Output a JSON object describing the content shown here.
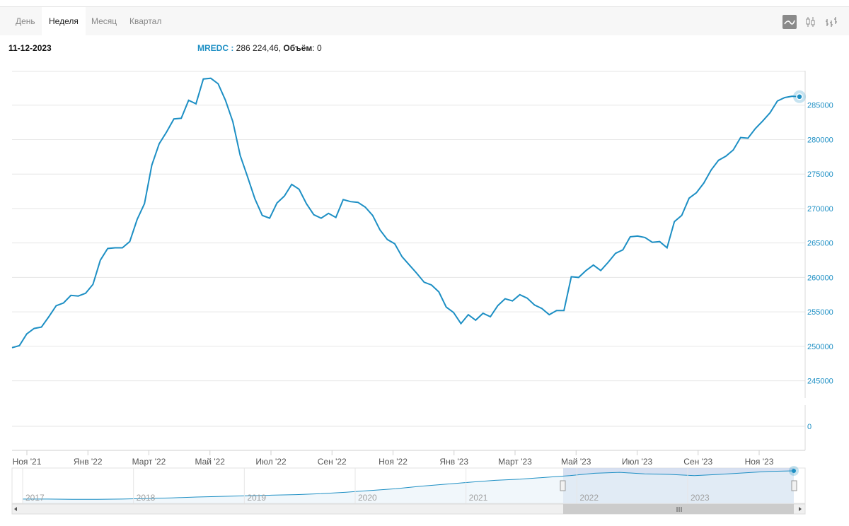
{
  "tabs": [
    {
      "label": "День",
      "active": false
    },
    {
      "label": "Неделя",
      "active": true
    },
    {
      "label": "Месяц",
      "active": false
    },
    {
      "label": "Квартал",
      "active": false
    }
  ],
  "view_buttons": [
    {
      "icon": "line-chart-icon",
      "active": true
    },
    {
      "icon": "candlestick-icon",
      "active": false
    },
    {
      "icon": "ohlc-bars-icon",
      "active": false
    }
  ],
  "header": {
    "date": "11-12-2023",
    "ticker": "MREDC :",
    "value": " 286 224,46, ",
    "volume_label": "Объём",
    "volume_value": ": 0"
  },
  "colors": {
    "line": "#1d8fc4",
    "grid": "#e6e6e6",
    "navigator_fill": "#c9d5ec"
  },
  "chart_data": {
    "type": "line",
    "title": "",
    "series": [
      {
        "name": "MREDC",
        "values": [
          249800,
          250100,
          251800,
          252600,
          252800,
          254300,
          255900,
          256300,
          257400,
          257300,
          257700,
          259000,
          262500,
          264200,
          264300,
          264300,
          265200,
          268400,
          270700,
          276300,
          279400,
          281100,
          283000,
          283100,
          285700,
          285200,
          288800,
          288900,
          288100,
          285700,
          282600,
          277700,
          274600,
          271400,
          269000,
          268600,
          270800,
          271800,
          273500,
          272800,
          270700,
          269100,
          268600,
          269300,
          268700,
          271300,
          271000,
          270900,
          270200,
          269000,
          266900,
          265500,
          264900,
          263000,
          261800,
          260600,
          259300,
          258900,
          257900,
          255700,
          254900,
          253300,
          254600,
          253800,
          254800,
          254300,
          255900,
          256900,
          256600,
          257500,
          257000,
          256000,
          255500,
          254600,
          255200,
          255200,
          260100,
          260000,
          261000,
          261800,
          261000,
          262200,
          263500,
          264000,
          265900,
          266000,
          265800,
          265100,
          265200,
          264300,
          268100,
          269000,
          271500,
          272300,
          273700,
          275600,
          277000,
          277600,
          278500,
          280300,
          280200,
          281600,
          282700,
          283900,
          285600,
          286100,
          286300,
          286224
        ]
      }
    ],
    "x_tick_labels": [
      "Ноя '21",
      "Янв '22",
      "Март '22",
      "Май '22",
      "Июл '22",
      "Сен '22",
      "Ноя '22",
      "Янв '23",
      "Март '23",
      "Май '23",
      "Июл '23",
      "Сен '23",
      "Ноя '23"
    ],
    "y_ticks": [
      245000,
      250000,
      255000,
      260000,
      265000,
      270000,
      275000,
      280000,
      285000
    ],
    "ylim": [
      242500,
      290000
    ],
    "volume_axis_ticks": [
      0
    ],
    "grid": true,
    "navigator": {
      "year_labels": [
        "2017",
        "2018",
        "2019",
        "2020",
        "2021",
        "2022",
        "2023"
      ],
      "values": [
        0.05,
        0.05,
        0.04,
        0.04,
        0.05,
        0.07,
        0.09,
        0.12,
        0.14,
        0.16,
        0.18,
        0.2,
        0.23,
        0.28,
        0.34,
        0.4,
        0.48,
        0.55,
        0.62,
        0.68,
        0.72,
        0.78,
        0.84,
        0.92,
        0.95,
        0.9,
        0.88,
        0.84,
        0.88,
        0.93,
        0.98,
        1.0
      ]
    }
  }
}
